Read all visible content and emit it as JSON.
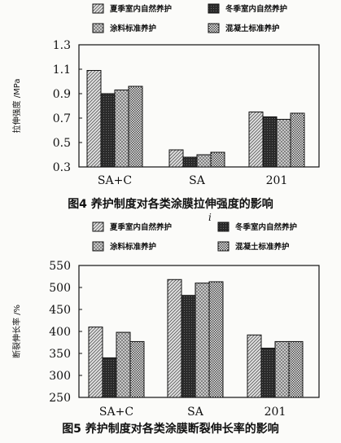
{
  "chart_data": [
    {
      "type": "bar",
      "categories": [
        "SA+C",
        "SA",
        "201"
      ],
      "series": [
        {
          "name": "夏季室内自然养护",
          "values": [
            1.09,
            0.44,
            0.75
          ]
        },
        {
          "name": "冬季室内自然养护",
          "values": [
            0.9,
            0.38,
            0.71
          ]
        },
        {
          "name": "涂料标准养护",
          "values": [
            0.93,
            0.4,
            0.69
          ]
        },
        {
          "name": "混凝土标准养护",
          "values": [
            0.96,
            0.42,
            0.74
          ]
        }
      ],
      "ylabel": "拉伸强度 /MPa",
      "ylim": [
        0.3,
        1.3
      ],
      "yticks": [
        "0.3",
        "0.5",
        "0.7",
        "0.9",
        "1.1",
        "1.3"
      ],
      "title": "图4 养护制度对各类涂膜拉伸强度的影响",
      "legend": "top, 2 columns",
      "grid": false
    },
    {
      "type": "bar",
      "categories": [
        "SA+C",
        "SA",
        "201"
      ],
      "series": [
        {
          "name": "夏季室内自然养护",
          "values": [
            410,
            518,
            392
          ]
        },
        {
          "name": "冬季室内自然养护",
          "values": [
            340,
            482,
            362
          ]
        },
        {
          "name": "涂料标准养护",
          "values": [
            398,
            510,
            377
          ]
        },
        {
          "name": "混凝土标准养护",
          "values": [
            377,
            513,
            377
          ]
        }
      ],
      "ylabel": "断裂伸长率 /%",
      "ylim": [
        250,
        550
      ],
      "yticks": [
        "250",
        "300",
        "350",
        "400",
        "450",
        "500",
        "550"
      ],
      "title": "图5 养护制度对各类涂膜断裂伸长率的影响",
      "legend": "top, 2 columns",
      "grid": false
    }
  ],
  "fill_styles": [
    "diagonal-light",
    "solid-dark",
    "cross-hatch",
    "checker-dense"
  ],
  "colors": {
    "ink": "#111111",
    "paper": "#fbfbf9"
  },
  "stray_mark": "i"
}
